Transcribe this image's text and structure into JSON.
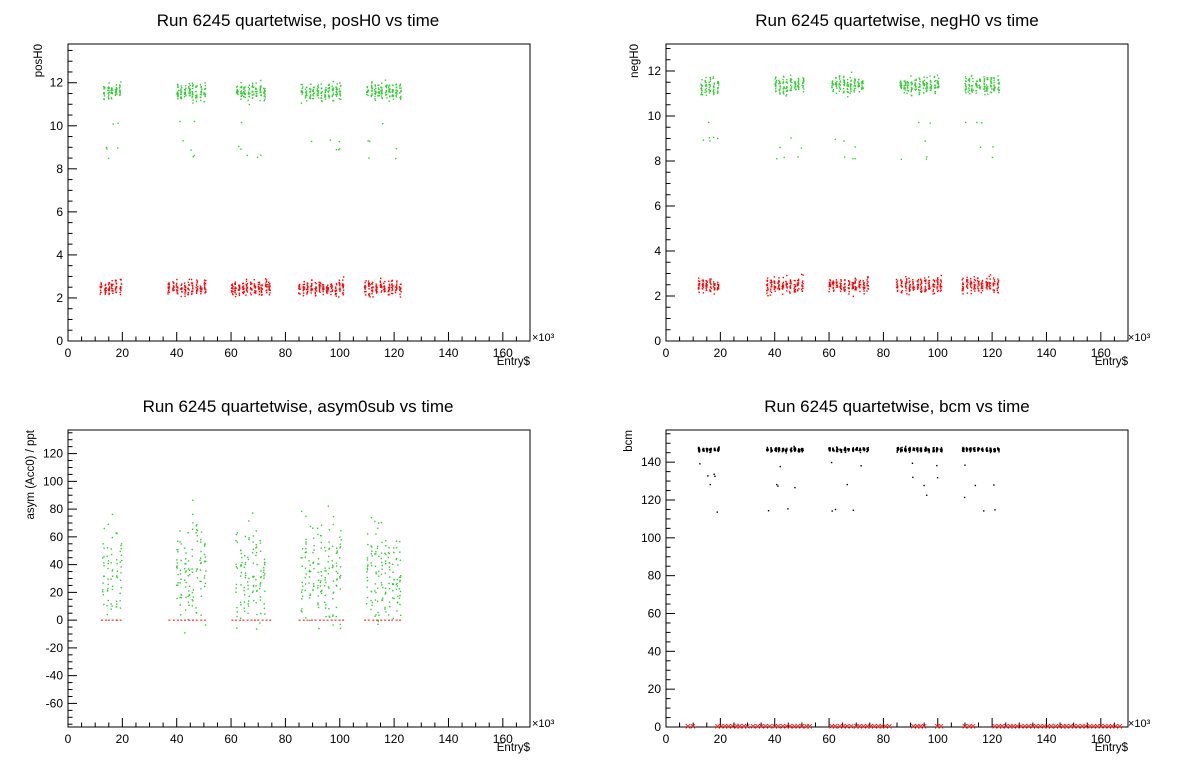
{
  "colors": {
    "in_cut": "#33cc33",
    "out_cut": "#ff0000",
    "bcm_points": "#000000",
    "frame": "#000000",
    "background": "#ffffff"
  },
  "chart_data": [
    {
      "type": "scatter",
      "title": "Run 6245 quartetwise, posH0 vs time",
      "xlabel": "Entry$",
      "ylabel": "posH0",
      "x_multiplier": "×10³",
      "xlim": [
        0,
        170
      ],
      "ylim": [
        0,
        13.8
      ],
      "xticks": [
        0,
        20,
        40,
        60,
        80,
        100,
        120,
        140,
        160
      ],
      "yticks": [
        0,
        2,
        4,
        6,
        8,
        10,
        12
      ],
      "grid": false,
      "series": [
        {
          "color": "green",
          "band_center": 11.6,
          "band_spread": 0.7,
          "sparse_values": [
            9.0,
            8.6,
            10.2,
            9.4
          ],
          "segments": [
            [
              13,
              19
            ],
            [
              40,
              50
            ],
            [
              62,
              72
            ],
            [
              86,
              100
            ],
            [
              110,
              122
            ]
          ]
        },
        {
          "color": "red",
          "band_center": 2.5,
          "band_spread": 0.6,
          "sparse_values": [],
          "segments": [
            [
              12,
              19
            ],
            [
              37,
              50
            ],
            [
              60,
              74
            ],
            [
              85,
              101
            ],
            [
              109,
              122
            ]
          ]
        }
      ]
    },
    {
      "type": "scatter",
      "title": "Run 6245 quartetwise, negH0 vs time",
      "xlabel": "Entry$",
      "ylabel": "negH0",
      "x_multiplier": "×10³",
      "xlim": [
        0,
        170
      ],
      "ylim": [
        0,
        13.2
      ],
      "xticks": [
        0,
        20,
        40,
        60,
        80,
        100,
        120,
        140,
        160
      ],
      "yticks": [
        0,
        2,
        4,
        6,
        8,
        10,
        12
      ],
      "grid": false,
      "series": [
        {
          "color": "green",
          "band_center": 11.4,
          "band_spread": 0.7,
          "sparse_values": [
            8.6,
            9.0,
            9.8,
            8.2
          ],
          "segments": [
            [
              13,
              19
            ],
            [
              40,
              50
            ],
            [
              61,
              72
            ],
            [
              86,
              100
            ],
            [
              110,
              122
            ]
          ]
        },
        {
          "color": "red",
          "band_center": 2.5,
          "band_spread": 0.6,
          "sparse_values": [],
          "segments": [
            [
              12,
              19
            ],
            [
              37,
              50
            ],
            [
              60,
              74
            ],
            [
              85,
              101
            ],
            [
              109,
              122
            ]
          ]
        }
      ]
    },
    {
      "type": "scatter",
      "title": "Run 6245 quartetwise, asym0sub vs time",
      "xlabel": "Entry$",
      "ylabel": "asym (Acc0) / ppt",
      "x_multiplier": "×10³",
      "xlim": [
        0,
        170
      ],
      "ylim": [
        -77,
        137
      ],
      "xticks": [
        0,
        20,
        40,
        60,
        80,
        100,
        120,
        140,
        160
      ],
      "yticks": [
        -60,
        -40,
        -20,
        0,
        20,
        40,
        60,
        80,
        100,
        120
      ],
      "grid": false,
      "series": [
        {
          "color": "green",
          "band_center": 35,
          "band_spread": 65,
          "sparse_values": [],
          "segments": [
            [
              13,
              19
            ],
            [
              40,
              50
            ],
            [
              62,
              72
            ],
            [
              86,
              100
            ],
            [
              110,
              122
            ]
          ]
        },
        {
          "color": "red",
          "band_center": 0,
          "band_spread": 1.5,
          "sparse_values": [],
          "segments": [
            [
              12,
              19
            ],
            [
              37,
              50
            ],
            [
              60,
              74
            ],
            [
              85,
              101
            ],
            [
              109,
              122
            ]
          ]
        }
      ]
    },
    {
      "type": "scatter",
      "title": "Run 6245 quartetwise, bcm vs time",
      "xlabel": "Entry$",
      "ylabel": "bcm",
      "x_multiplier": "×10³",
      "xlim": [
        0,
        170
      ],
      "ylim": [
        0,
        157
      ],
      "xticks": [
        0,
        20,
        40,
        60,
        80,
        100,
        120,
        140,
        160
      ],
      "yticks": [
        0,
        20,
        40,
        60,
        80,
        100,
        120,
        140
      ],
      "grid": false,
      "series": [
        {
          "color": "black",
          "band_center": 147,
          "band_spread": 2,
          "sparse_values": [
            133,
            128,
            122,
            115,
            139
          ],
          "segments": [
            [
              12,
              19
            ],
            [
              37,
              50
            ],
            [
              60,
              74
            ],
            [
              85,
              101
            ],
            [
              109,
              122
            ]
          ]
        },
        {
          "color": "red",
          "band_center": 0.5,
          "band_spread": 0.5,
          "sparse_values": [],
          "segments": [
            [
              8,
              10
            ],
            [
              19,
              30
            ],
            [
              32,
              38
            ],
            [
              40,
              53
            ],
            [
              61,
              68
            ],
            [
              70,
              82
            ],
            [
              91,
              95
            ],
            [
              100,
              101
            ],
            [
              110,
              113
            ],
            [
              121,
              167
            ]
          ]
        }
      ]
    }
  ]
}
